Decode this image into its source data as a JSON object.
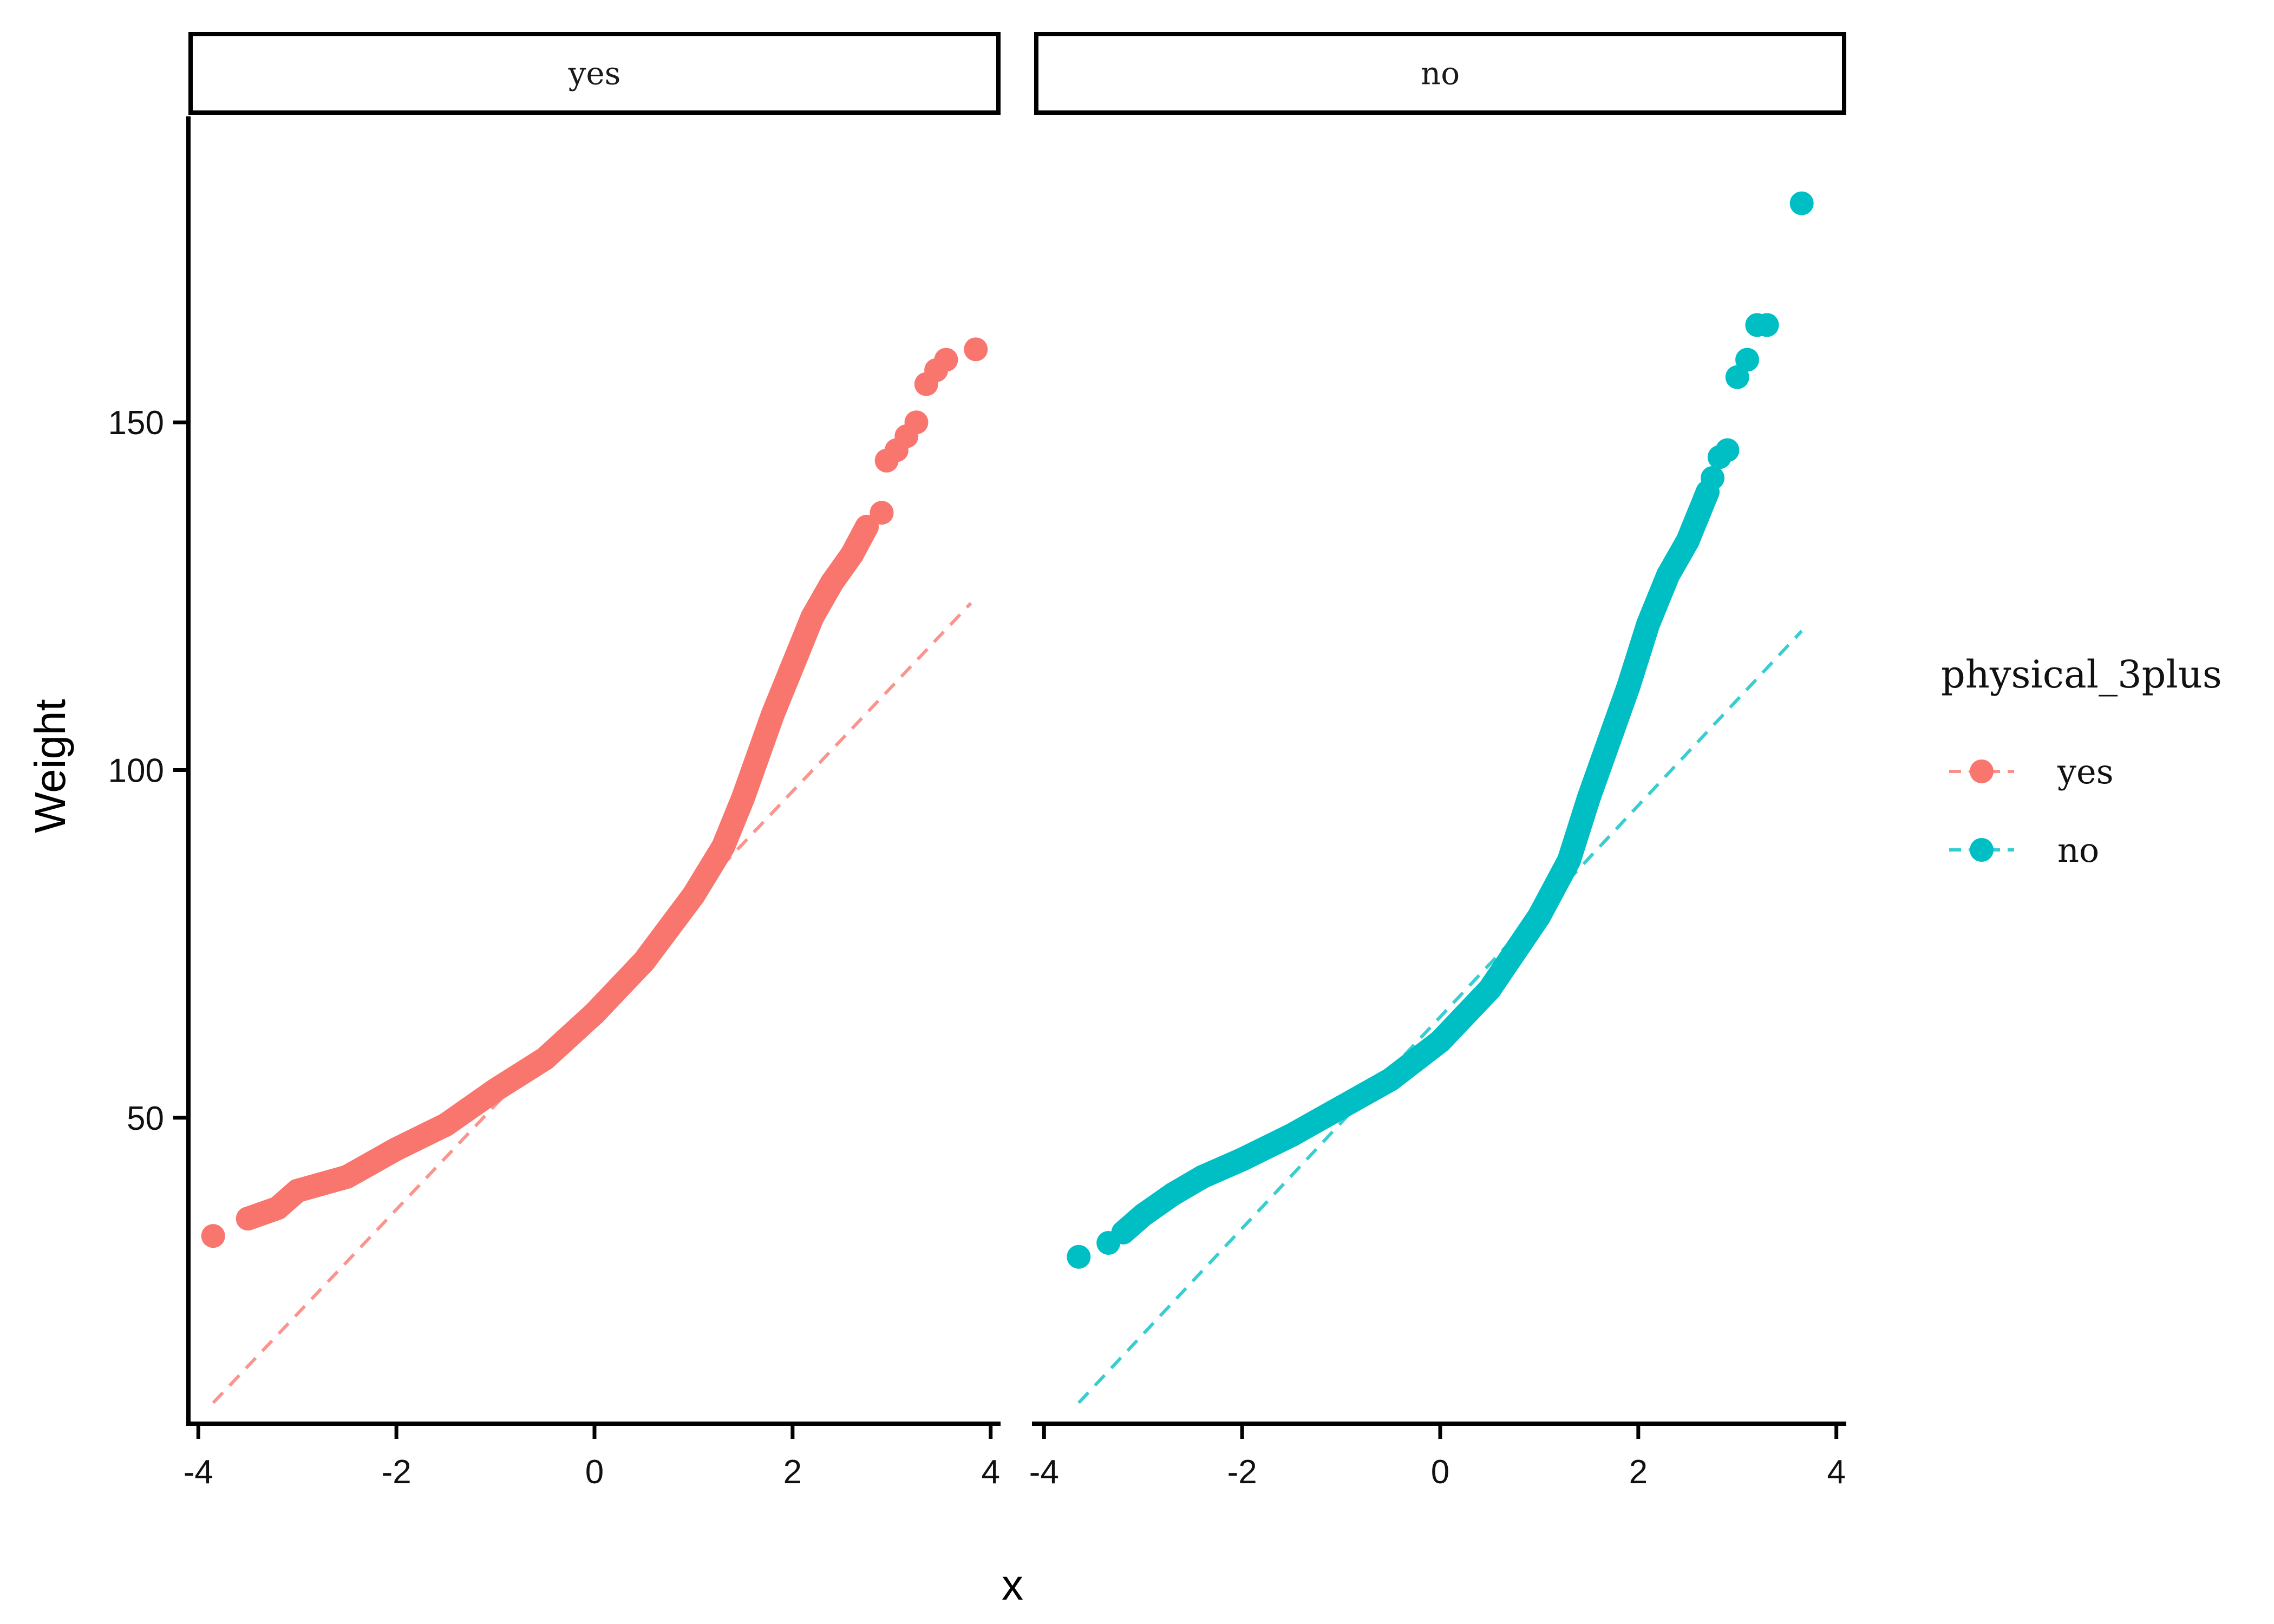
{
  "chart_data": {
    "type": "scatter",
    "title": "",
    "xlabel": "x",
    "ylabel": "Weight",
    "xlim": [
      -4.1,
      4.1
    ],
    "ylim": [
      6,
      194
    ],
    "x_ticks": [
      -4,
      -2,
      0,
      2,
      4
    ],
    "x_tick_labels": [
      "-4",
      "-2",
      "0",
      "2",
      "4"
    ],
    "y_ticks": [
      50,
      100,
      150
    ],
    "y_tick_labels": [
      "50",
      "100",
      "150"
    ],
    "grid": false,
    "legend": {
      "title": "physical_3plus",
      "position": "right",
      "entries": [
        {
          "label": "yes",
          "color": "#F8766D"
        },
        {
          "label": "no",
          "color": "#00BFC4"
        }
      ]
    },
    "panels": [
      {
        "strip_label": "yes",
        "color": "#F8766D",
        "reference_line": {
          "x": [
            -3.85,
            3.8
          ],
          "y": [
            9,
            124
          ]
        },
        "quantile_curve": [
          [
            -3.5,
            35.5
          ],
          [
            -3.2,
            37
          ],
          [
            -3.0,
            39.5
          ],
          [
            -2.5,
            41.5
          ],
          [
            -2.0,
            45.5
          ],
          [
            -1.5,
            49
          ],
          [
            -1.0,
            54
          ],
          [
            -0.5,
            58.5
          ],
          [
            0.0,
            65
          ],
          [
            0.5,
            72.5
          ],
          [
            1.0,
            82
          ],
          [
            1.3,
            89
          ],
          [
            1.5,
            96
          ],
          [
            1.8,
            108
          ],
          [
            2.0,
            115
          ],
          [
            2.2,
            122
          ],
          [
            2.4,
            127
          ],
          [
            2.6,
            131
          ],
          [
            2.75,
            135
          ]
        ],
        "isolated_points": [
          [
            -3.85,
            33
          ],
          [
            2.9,
            137
          ],
          [
            2.95,
            144.5
          ],
          [
            3.05,
            146
          ],
          [
            3.15,
            148
          ],
          [
            3.25,
            150
          ],
          [
            3.35,
            155.5
          ],
          [
            3.45,
            157.5
          ],
          [
            3.55,
            159
          ],
          [
            3.85,
            160.5
          ]
        ]
      },
      {
        "strip_label": "no",
        "color": "#00BFC4",
        "reference_line": {
          "x": [
            -3.65,
            3.65
          ],
          "y": [
            9,
            120
          ]
        },
        "quantile_curve": [
          [
            -3.2,
            33.5
          ],
          [
            -3.0,
            36
          ],
          [
            -2.7,
            39
          ],
          [
            -2.4,
            41.5
          ],
          [
            -2.0,
            44
          ],
          [
            -1.5,
            47.5
          ],
          [
            -1.0,
            51.5
          ],
          [
            -0.5,
            55.5
          ],
          [
            0.0,
            61
          ],
          [
            0.5,
            68.5
          ],
          [
            1.0,
            79
          ],
          [
            1.3,
            87
          ],
          [
            1.5,
            96
          ],
          [
            1.7,
            104
          ],
          [
            1.9,
            112
          ],
          [
            2.1,
            121
          ],
          [
            2.3,
            128
          ],
          [
            2.5,
            133
          ],
          [
            2.7,
            140
          ]
        ],
        "isolated_points": [
          [
            -3.65,
            30
          ],
          [
            -3.35,
            32
          ],
          [
            2.75,
            142
          ],
          [
            2.82,
            145
          ],
          [
            2.9,
            146
          ],
          [
            3.0,
            156.5
          ],
          [
            3.1,
            159
          ],
          [
            3.2,
            164
          ],
          [
            3.3,
            164
          ],
          [
            3.65,
            181.5
          ]
        ]
      }
    ]
  }
}
